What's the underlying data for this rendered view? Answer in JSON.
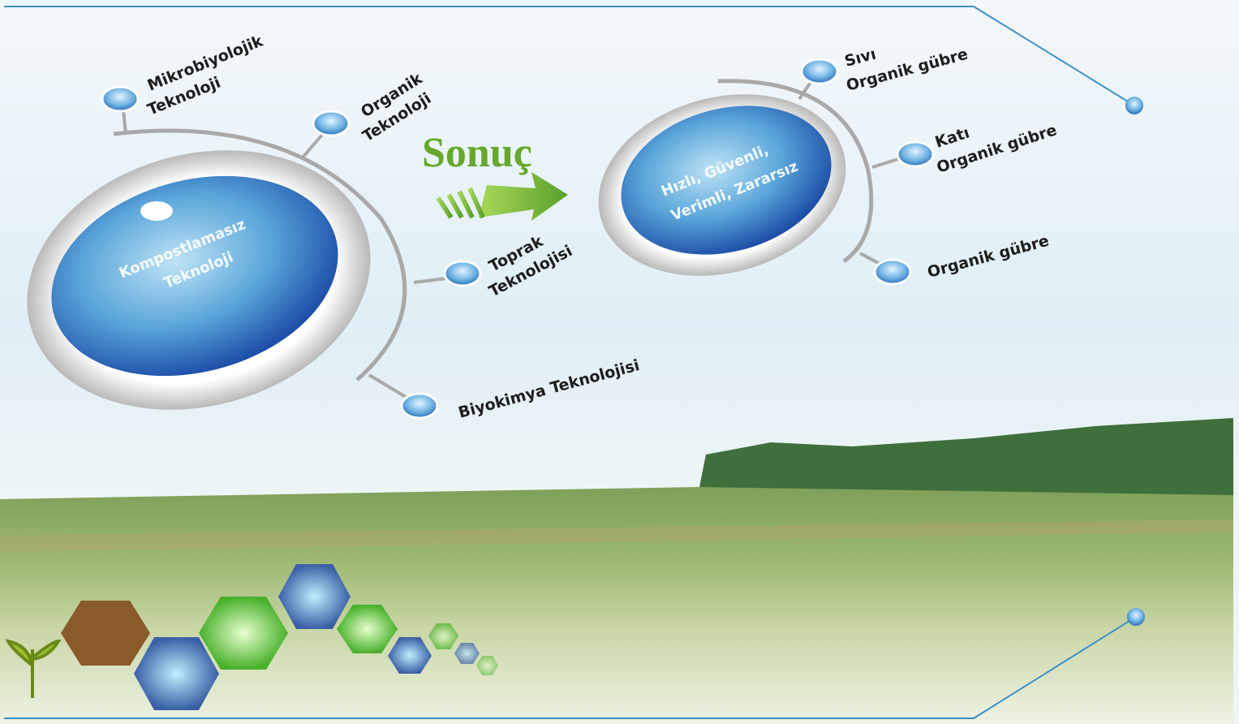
{
  "left": {
    "center": [
      "Kompostlamasız",
      "Teknoloji"
    ],
    "nodes": [
      {
        "label": [
          "Mikrobiyolojik",
          "Teknoloji"
        ]
      },
      {
        "label": [
          "Organik",
          "Teknoloji"
        ]
      },
      {
        "label": [
          "Toprak",
          "Teknolojisi"
        ]
      },
      {
        "label": [
          "Biyokimya Teknolojisi"
        ]
      }
    ]
  },
  "arrow": {
    "label": "Sonuç"
  },
  "right": {
    "center": [
      "Hızlı, Güvenli,",
      "Verimli, Zararsız"
    ],
    "nodes": [
      {
        "label": [
          "Sıvı",
          "Organik gübre"
        ]
      },
      {
        "label": [
          "Katı",
          "Organik gübre"
        ]
      },
      {
        "label": [
          "Organik gübre"
        ]
      }
    ]
  }
}
